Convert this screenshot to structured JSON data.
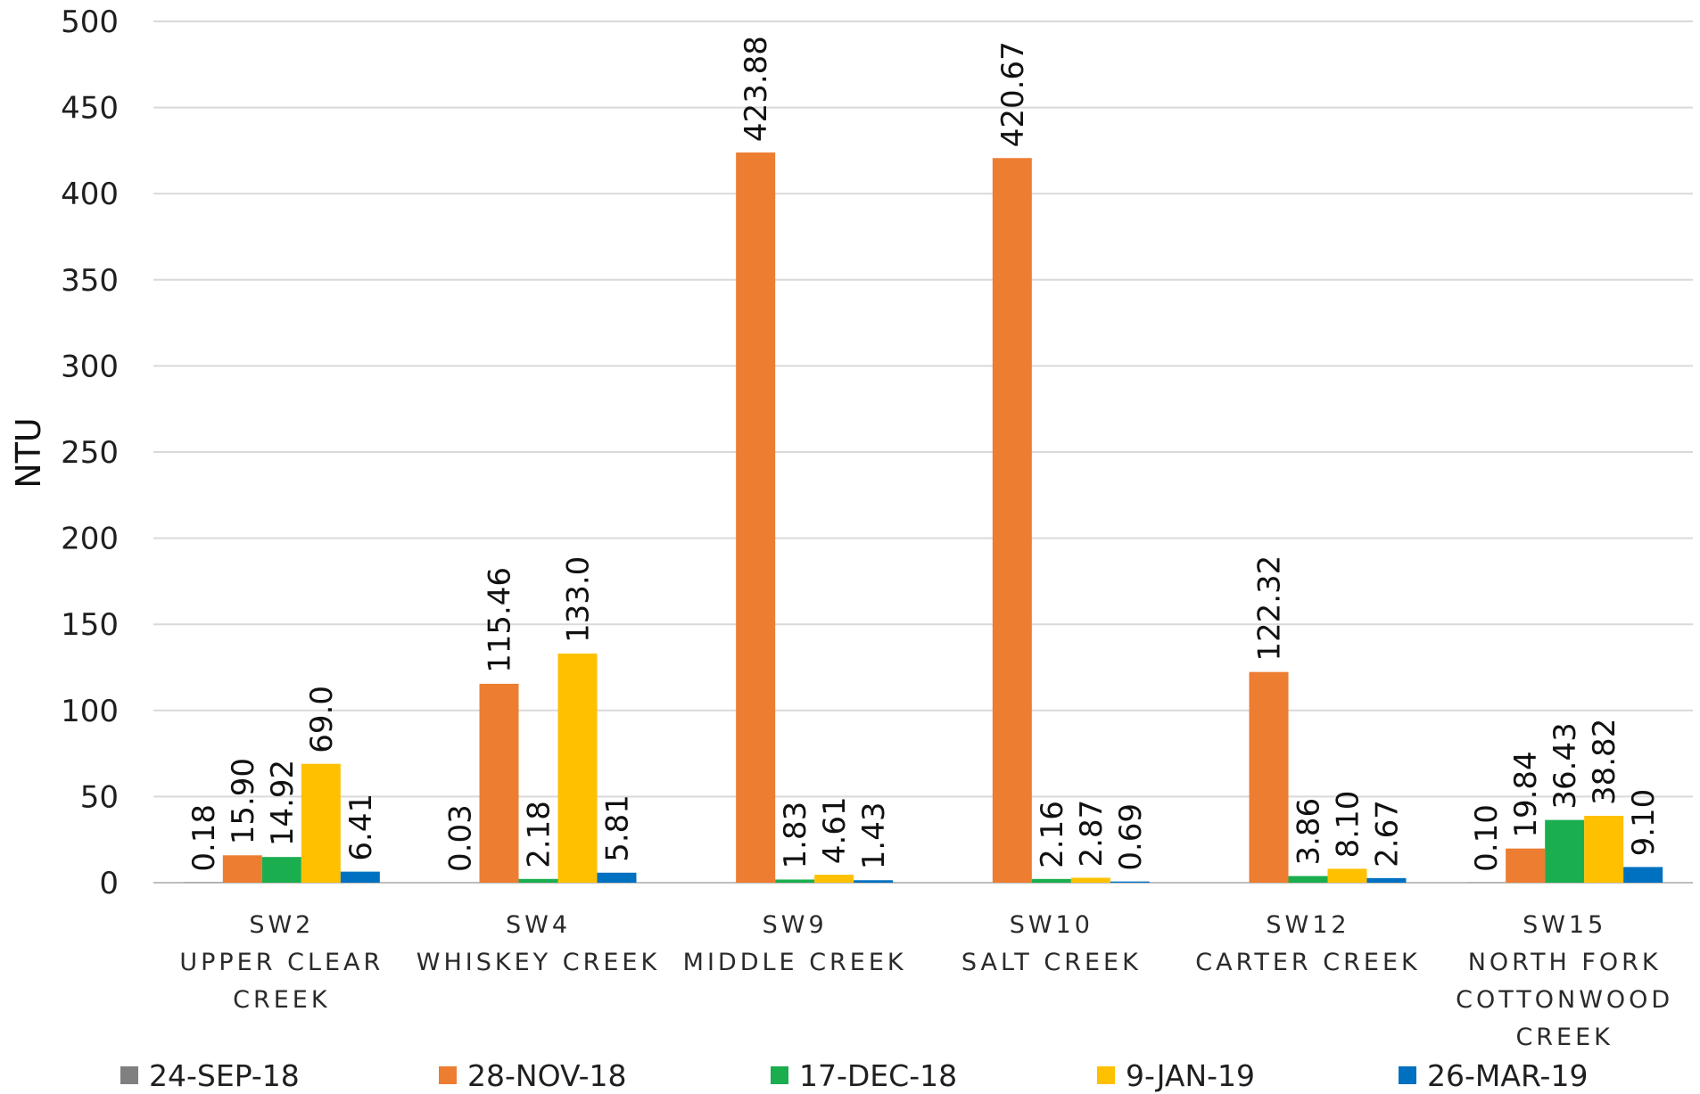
{
  "chart_data": {
    "type": "bar",
    "title": "",
    "xlabel": "",
    "ylabel": "NTU",
    "ylim": [
      0,
      500
    ],
    "yticks": [
      0,
      50,
      100,
      150,
      200,
      250,
      300,
      350,
      400,
      450,
      500
    ],
    "grid": true,
    "legend_position": "bottom",
    "categories": [
      [
        "SW2",
        "UPPER CLEAR",
        "CREEK"
      ],
      [
        "SW4",
        "WHISKEY CREEK"
      ],
      [
        "SW9",
        "MIDDLE CREEK"
      ],
      [
        "SW10",
        "SALT CREEK"
      ],
      [
        "SW12",
        "CARTER CREEK"
      ],
      [
        "SW15",
        "NORTH FORK",
        "COTTONWOOD",
        "CREEK"
      ]
    ],
    "series": [
      {
        "name": "24-SEP-18",
        "color": "#808080",
        "values": [
          0.18,
          0.03,
          null,
          null,
          null,
          0.1
        ],
        "labels": [
          "0.18",
          "0.03",
          null,
          null,
          null,
          "0.10"
        ]
      },
      {
        "name": "28-NOV-18",
        "color": "#ED7D31",
        "values": [
          15.9,
          115.46,
          423.88,
          420.67,
          122.32,
          19.84
        ],
        "labels": [
          "15.90",
          "115.46",
          "423.88",
          "420.67",
          "122.32",
          "19.84"
        ]
      },
      {
        "name": "17-DEC-18",
        "color": "#1AAE4F",
        "values": [
          14.92,
          2.18,
          1.83,
          2.16,
          3.86,
          36.43
        ],
        "labels": [
          "14.92",
          "2.18",
          "1.83",
          "2.16",
          "3.86",
          "36.43"
        ]
      },
      {
        "name": "9-JAN-19",
        "color": "#FFC000",
        "values": [
          69.0,
          133.0,
          4.61,
          2.87,
          8.1,
          38.82
        ],
        "labels": [
          "69.0",
          "133.0",
          "4.61",
          "2.87",
          "8.10",
          "38.82"
        ]
      },
      {
        "name": "26-MAR-19",
        "color": "#0070C0",
        "values": [
          6.41,
          5.81,
          1.43,
          0.69,
          2.67,
          9.1
        ],
        "labels": [
          "6.41",
          "5.81",
          "1.43",
          "0.69",
          "2.67",
          "9.10"
        ]
      }
    ]
  }
}
